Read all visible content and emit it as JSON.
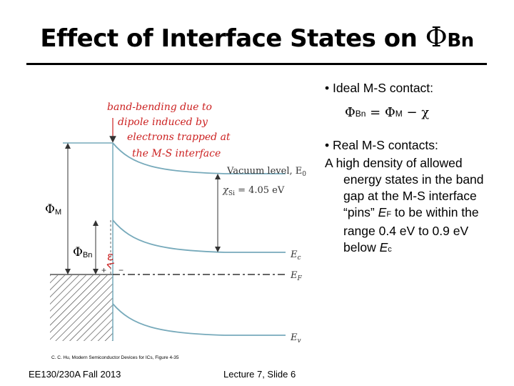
{
  "slide": {
    "title_text": "Effect of Interface States on ",
    "title_symbol": "Φ",
    "title_sub": "Bn",
    "bullet1": "•  Ideal M-S contact:",
    "eq": {
      "a": "Φ",
      "a_sub": "Bn",
      "eq_sign": " = ",
      "b": "Φ",
      "b_sub": "M",
      "minus": " − χ"
    },
    "bullet2": "•  Real M-S contacts:",
    "b2_line1": "A high density of allowed",
    "b2_rest_1": "energy states in the band gap at the M-S interface “pins” ",
    "b2_ef": "E",
    "b2_ef_sub": "F",
    "b2_rest_2": " to be within the range 0.4 eV to 0.9 eV below ",
    "b2_ec": "E",
    "b2_ec_sub": "c",
    "credit": "C. C. Hu, Modern Semiconductor Devices for ICs, Figure 4-35",
    "footer_left": "EE130/230A Fall 2013",
    "footer_right": "Lecture 7, Slide 6"
  },
  "diagram": {
    "annotation": [
      "band-bending due to",
      "dipole induced by",
      "electrons trapped at",
      "the M-S interface"
    ],
    "vacuum_label": "Vacuum level, E",
    "vacuum_sub": "0",
    "chi_label": "χ",
    "chi_sub": "Si",
    "chi_value": " = 4.05 eV",
    "phi_m": "Φ",
    "phi_m_sub": "M",
    "phi_bn": "Φ",
    "phi_bn_sub": "Bn",
    "field": "ε",
    "plus": "+",
    "minus": "−",
    "ec": "E",
    "ec_sub": "c",
    "ef": "E",
    "ef_sub": "F",
    "ev": "E",
    "ev_sub": "v",
    "red": "#cc2222"
  }
}
